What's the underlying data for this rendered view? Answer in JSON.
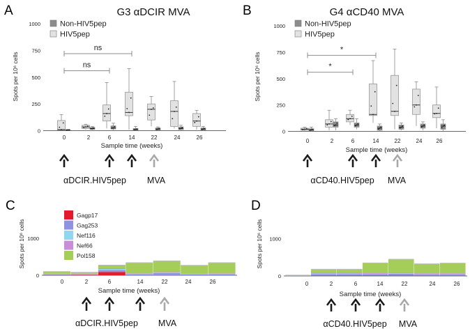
{
  "figure": {
    "colors": {
      "box_fill": "#e2e2e2",
      "box_stroke": "#8a8a8a",
      "nonhiv_fill": "#8c8c8c",
      "axis": "#666666",
      "ref_line": "#8e8e8e",
      "arrow_dark": "#1a1a1a",
      "arrow_light": "#a8a8a8",
      "gagp17": "#e41b2c",
      "gag253": "#8d93e0",
      "nef116": "#8fd6f0",
      "nef66": "#c88ed9",
      "pol158": "#a5cd5a"
    }
  },
  "chart_data": [
    {
      "panel": "A",
      "type": "box",
      "title": "G3 αDCIR MVA",
      "xlabel": "Sample time (weeks)",
      "ylabel": "Spots per 10⁶ cells",
      "categories": [
        "0",
        "2",
        "6",
        "14",
        "22",
        "24",
        "26"
      ],
      "ylim": [
        0,
        1000
      ],
      "yticks": [
        "0",
        "250",
        "500",
        "750",
        "1000"
      ],
      "legend": [
        "Non-HIV5pep",
        "HIV5pep"
      ],
      "series": [
        {
          "name": "HIV5pep",
          "boxes": [
            {
              "min": 0,
              "q1": 5,
              "median": 10,
              "q3": 95,
              "max": 150
            },
            {
              "min": 10,
              "q1": 20,
              "median": 35,
              "q3": 50,
              "max": 60
            },
            {
              "min": 20,
              "q1": 90,
              "median": 160,
              "q3": 240,
              "max": 450
            },
            {
              "min": 10,
              "q1": 140,
              "median": 170,
              "q3": 360,
              "max": 580
            },
            {
              "min": 40,
              "q1": 100,
              "median": 200,
              "q3": 250,
              "max": 320
            },
            {
              "min": 20,
              "q1": 40,
              "median": 180,
              "q3": 280,
              "max": 460
            },
            {
              "min": 10,
              "q1": 40,
              "median": 90,
              "q3": 160,
              "max": 190
            }
          ]
        },
        {
          "name": "Non-HIV5pep",
          "boxes": [
            {
              "min": 0,
              "q1": 2,
              "median": 5,
              "q3": 8,
              "max": 12
            },
            {
              "min": 5,
              "q1": 12,
              "median": 20,
              "q3": 30,
              "max": 40
            },
            {
              "min": 5,
              "q1": 15,
              "median": 25,
              "q3": 45,
              "max": 70
            },
            {
              "min": 0,
              "q1": 5,
              "median": 10,
              "q3": 20,
              "max": 40
            },
            {
              "min": 0,
              "q1": 5,
              "median": 15,
              "q3": 25,
              "max": 35
            },
            {
              "min": 5,
              "q1": 10,
              "median": 20,
              "q3": 35,
              "max": 50
            },
            {
              "min": 0,
              "q1": 5,
              "median": 15,
              "q3": 25,
              "max": 40
            }
          ]
        }
      ],
      "significance": [
        {
          "from": "0",
          "to": "6",
          "label": "ns"
        },
        {
          "from": "0",
          "to": "14",
          "label": "ns"
        }
      ],
      "arrows": [
        {
          "week": "0",
          "kind": "dark"
        },
        {
          "week": "6",
          "kind": "dark"
        },
        {
          "week": "14",
          "kind": "dark"
        },
        {
          "week": "22",
          "kind": "light"
        }
      ],
      "arrow_labels": [
        {
          "text": "αDCIR.HIV5pep",
          "under": "6"
        },
        {
          "text": "MVA",
          "under": "22"
        }
      ]
    },
    {
      "panel": "B",
      "type": "box",
      "title": "G4 αCD40 MVA",
      "xlabel": "Sample time (weeks)",
      "ylabel": "Spots per 10⁶ cells",
      "categories": [
        "0",
        "2",
        "6",
        "14",
        "22",
        "24",
        "26"
      ],
      "ylim": [
        0,
        1000
      ],
      "yticks": [
        "0",
        "250",
        "500",
        "750",
        "1000"
      ],
      "legend": [
        "Non-HIV5pep",
        "HIV5pep"
      ],
      "series": [
        {
          "name": "HIV5pep",
          "boxes": [
            {
              "min": 0,
              "q1": 10,
              "median": 20,
              "q3": 30,
              "max": 40
            },
            {
              "min": 10,
              "q1": 40,
              "median": 70,
              "q3": 110,
              "max": 200
            },
            {
              "min": 60,
              "q1": 90,
              "median": 120,
              "q3": 160,
              "max": 200
            },
            {
              "min": 80,
              "q1": 150,
              "median": 160,
              "q3": 450,
              "max": 670
            },
            {
              "min": 20,
              "q1": 150,
              "median": 190,
              "q3": 530,
              "max": 780
            },
            {
              "min": 50,
              "q1": 160,
              "median": 250,
              "q3": 400,
              "max": 470
            },
            {
              "min": 30,
              "q1": 130,
              "median": 170,
              "q3": 250,
              "max": 420
            }
          ]
        },
        {
          "name": "Non-HIV5pep",
          "boxes": [
            {
              "min": 0,
              "q1": 5,
              "median": 15,
              "q3": 25,
              "max": 40
            },
            {
              "min": 10,
              "q1": 40,
              "median": 60,
              "q3": 90,
              "max": 120
            },
            {
              "min": 20,
              "q1": 40,
              "median": 60,
              "q3": 80,
              "max": 120
            },
            {
              "min": 0,
              "q1": 10,
              "median": 30,
              "q3": 50,
              "max": 70
            },
            {
              "min": 10,
              "q1": 20,
              "median": 40,
              "q3": 60,
              "max": 80
            },
            {
              "min": 10,
              "q1": 30,
              "median": 50,
              "q3": 70,
              "max": 90
            },
            {
              "min": 0,
              "q1": 20,
              "median": 50,
              "q3": 70,
              "max": 110
            }
          ]
        }
      ],
      "significance": [
        {
          "from": "0",
          "to": "6",
          "label": "*"
        },
        {
          "from": "0",
          "to": "14",
          "label": "*"
        }
      ],
      "arrows": [
        {
          "week": "0",
          "kind": "dark"
        },
        {
          "week": "6",
          "kind": "dark"
        },
        {
          "week": "14",
          "kind": "dark"
        },
        {
          "week": "22",
          "kind": "light"
        }
      ],
      "arrow_labels": [
        {
          "text": "αCD40.HIV5pep",
          "under": "6"
        },
        {
          "text": "MVA",
          "under": "22"
        }
      ]
    },
    {
      "panel": "C",
      "type": "bar",
      "stacked": true,
      "xlabel": "Sample time (weeks)",
      "ylabel": "Spots per 10⁶ cells",
      "categories": [
        "0",
        "2",
        "6",
        "14",
        "22",
        "24",
        "26"
      ],
      "ylim": [
        0,
        1800
      ],
      "yticks": [
        "0",
        "1000"
      ],
      "legend": [
        "Gagp17",
        "Gag253",
        "Nef116",
        "Nef66",
        "Pol158"
      ],
      "series": [
        {
          "name": "Gagp17",
          "values": [
            5,
            10,
            90,
            0,
            0,
            0,
            0
          ]
        },
        {
          "name": "Gag253",
          "values": [
            20,
            15,
            50,
            30,
            60,
            25,
            30
          ]
        },
        {
          "name": "Nef116",
          "values": [
            10,
            10,
            30,
            10,
            15,
            5,
            10
          ]
        },
        {
          "name": "Nef66",
          "values": [
            5,
            10,
            20,
            10,
            10,
            10,
            10
          ]
        },
        {
          "name": "Pol158",
          "values": [
            60,
            35,
            85,
            290,
            305,
            230,
            290
          ]
        }
      ],
      "arrows": [
        {
          "week": "2",
          "kind": "dark"
        },
        {
          "week": "6",
          "kind": "dark"
        },
        {
          "week": "14",
          "kind": "dark"
        },
        {
          "week": "22",
          "kind": "light"
        }
      ],
      "arrow_labels": [
        {
          "text": "αDCIR.HIV5pep",
          "under": "6"
        },
        {
          "text": "MVA",
          "under": "22"
        }
      ]
    },
    {
      "panel": "D",
      "type": "bar",
      "stacked": true,
      "xlabel": "Sample time (weeks)",
      "ylabel": "Spots per 10⁶ cells",
      "categories": [
        "0",
        "2",
        "6",
        "14",
        "22",
        "24",
        "26"
      ],
      "ylim": [
        0,
        1800
      ],
      "yticks": [
        "0",
        "1000"
      ],
      "series": [
        {
          "name": "Gagp17",
          "values": [
            0,
            10,
            10,
            10,
            10,
            5,
            5
          ]
        },
        {
          "name": "Gag253",
          "values": [
            5,
            40,
            40,
            40,
            50,
            40,
            40
          ]
        },
        {
          "name": "Nef116",
          "values": [
            3,
            15,
            15,
            10,
            10,
            10,
            10
          ]
        },
        {
          "name": "Nef66",
          "values": [
            2,
            20,
            20,
            15,
            15,
            15,
            15
          ]
        },
        {
          "name": "Pol158",
          "values": [
            10,
            95,
            95,
            275,
            365,
            255,
            275
          ]
        }
      ],
      "arrows": [
        {
          "week": "2",
          "kind": "dark"
        },
        {
          "week": "6",
          "kind": "dark"
        },
        {
          "week": "14",
          "kind": "dark"
        },
        {
          "week": "22",
          "kind": "light"
        }
      ],
      "arrow_labels": [
        {
          "text": "αCD40.HIV5pep",
          "under": "6"
        },
        {
          "text": "MVA",
          "under": "22"
        }
      ]
    }
  ]
}
